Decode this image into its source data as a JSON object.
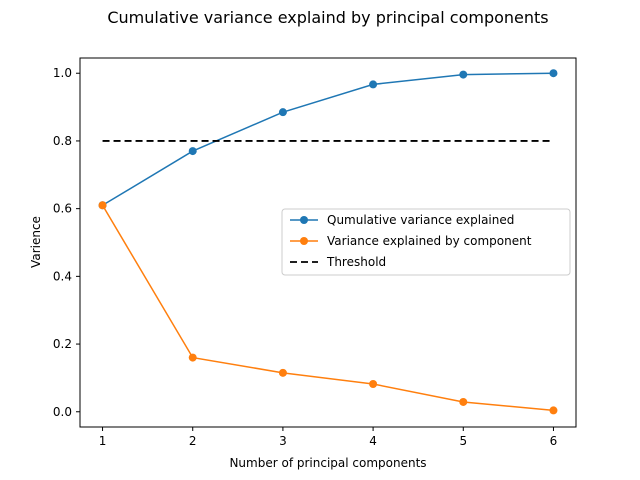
{
  "chart_data": {
    "type": "line",
    "title": "Cumulative variance explaind by principal components",
    "xlabel": "Number of principal components",
    "ylabel": "Varience",
    "xlim": [
      0.75,
      6.25
    ],
    "ylim": [
      -0.045,
      1.045
    ],
    "x_ticks": [
      1,
      2,
      3,
      4,
      5,
      6
    ],
    "y_ticks": [
      0.0,
      0.2,
      0.4,
      0.6,
      0.8,
      1.0
    ],
    "x_tick_labels": [
      "1",
      "2",
      "3",
      "4",
      "5",
      "6"
    ],
    "y_tick_labels": [
      "0.0",
      "0.2",
      "0.4",
      "0.6",
      "0.8",
      "1.0"
    ],
    "grid": false,
    "legend_position": "center-right",
    "series": [
      {
        "name": "Qumulative variance explained",
        "color": "#1f77b4",
        "marker": "circle",
        "line_style": "solid",
        "x": [
          1,
          2,
          3,
          4,
          5,
          6
        ],
        "values": [
          0.61,
          0.77,
          0.885,
          0.967,
          0.996,
          1.0
        ]
      },
      {
        "name": "Variance explained by component",
        "color": "#ff7f0e",
        "marker": "circle",
        "line_style": "solid",
        "x": [
          1,
          2,
          3,
          4,
          5,
          6
        ],
        "values": [
          0.61,
          0.16,
          0.115,
          0.082,
          0.029,
          0.004
        ]
      },
      {
        "name": "Threshold",
        "color": "#000000",
        "marker": "none",
        "line_style": "dashed",
        "x": [
          1,
          6
        ],
        "values": [
          0.8,
          0.8
        ]
      }
    ]
  }
}
